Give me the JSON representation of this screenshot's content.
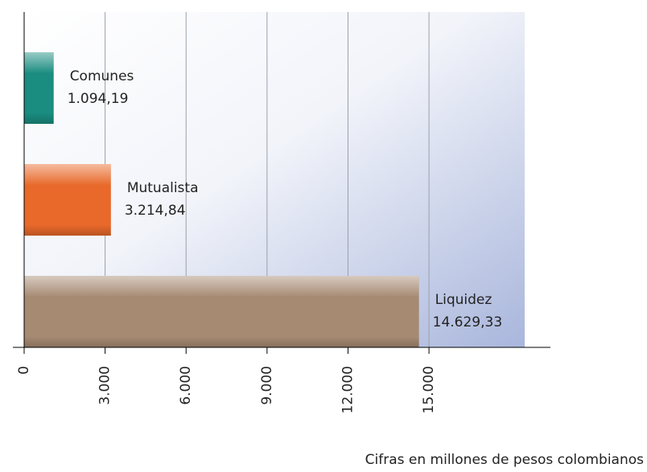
{
  "chart_data": {
    "type": "bar",
    "orientation": "horizontal",
    "categories": [
      "Comunes",
      "Mutualista",
      "Liquidez"
    ],
    "values": [
      1094.19,
      3214.84,
      14629.33
    ],
    "value_labels": [
      "1.094,19",
      "3.214,84",
      "14.629,33"
    ],
    "colors": [
      "#1a8c80",
      "#e8692a",
      "#a68a72"
    ],
    "xlim": [
      0,
      19500
    ],
    "xticks": [
      0,
      {
        "value": 3000,
        "label": "3.000"
      },
      {
        "value": 6000,
        "label": "6.000"
      },
      {
        "value": 9000,
        "label": "9.000"
      },
      {
        "value": 12000,
        "label": "12.000"
      },
      {
        "value": 15000,
        "label": "15.000"
      }
    ],
    "grid": true,
    "xlabel": "Cifras en millones de pesos colombianos"
  }
}
